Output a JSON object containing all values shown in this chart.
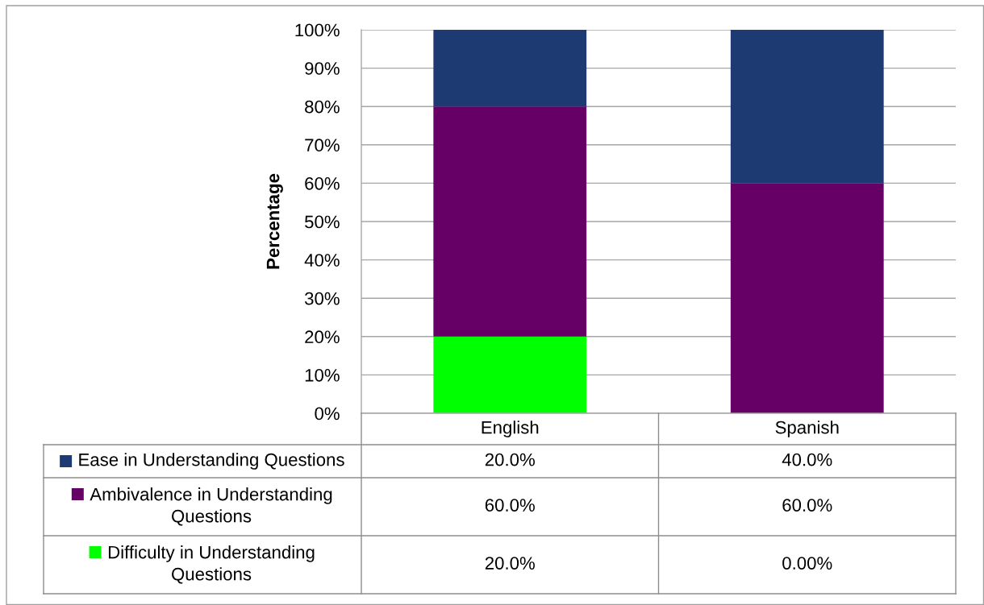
{
  "chart_data": {
    "type": "bar",
    "stacked": true,
    "ylabel": "Percentage",
    "categories": [
      "English",
      "Spanish"
    ],
    "series": [
      {
        "name": "Difficulty in Understanding Questions",
        "color": "#00ff00",
        "values": [
          20,
          0
        ],
        "value_labels": [
          "20.0%",
          "0.00%"
        ]
      },
      {
        "name": "Ambivalence in Understanding Questions",
        "color": "#660066",
        "values": [
          60,
          60
        ],
        "value_labels": [
          "60.0%",
          "60.0%"
        ]
      },
      {
        "name": "Ease in Understanding Questions",
        "color": "#1d3b72",
        "values": [
          20,
          40
        ],
        "value_labels": [
          "20.0%",
          "40.0%"
        ]
      }
    ],
    "ylim": [
      0,
      100
    ],
    "yticks": [
      {
        "value": 0,
        "label": "0%"
      },
      {
        "value": 10,
        "label": "10%"
      },
      {
        "value": 20,
        "label": "20%"
      },
      {
        "value": 30,
        "label": "30%"
      },
      {
        "value": 40,
        "label": "40%"
      },
      {
        "value": 50,
        "label": "50%"
      },
      {
        "value": 60,
        "label": "60%"
      },
      {
        "value": 70,
        "label": "70%"
      },
      {
        "value": 80,
        "label": "80%"
      },
      {
        "value": 90,
        "label": "90%"
      },
      {
        "value": 100,
        "label": "100%"
      }
    ],
    "grid": "y",
    "legend": "bottom"
  }
}
